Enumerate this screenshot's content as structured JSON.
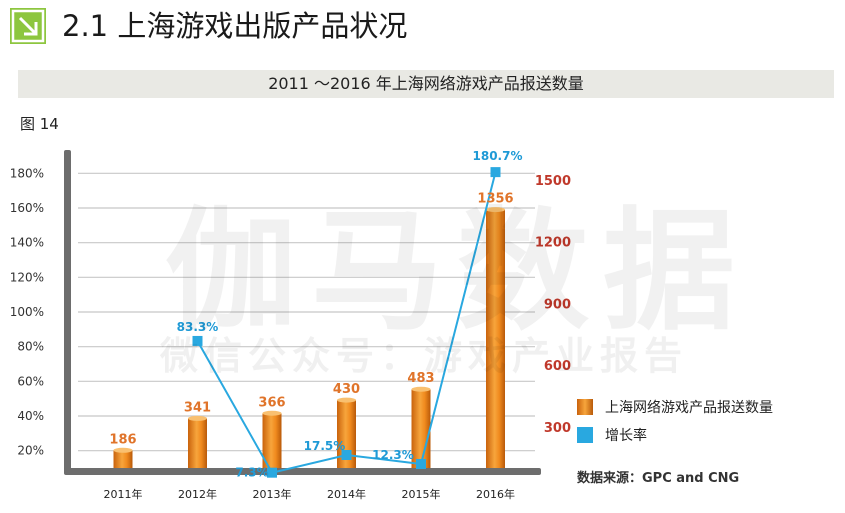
{
  "header": {
    "title": "2.1 上海游戏出版产品状况"
  },
  "banner": {
    "text": "2011 ～2016 年上海网络游戏产品报送数量"
  },
  "figure_label": "图 14",
  "watermark": {
    "main": "伽马数据",
    "sub": "微信公众号：游戏产业报告"
  },
  "legend": {
    "items": [
      {
        "label": "上海网络游戏产品报送数量",
        "color": "#f29321"
      },
      {
        "label": "增长率",
        "color": "#29a8e0"
      }
    ]
  },
  "source": "数据来源：GPC  and CNG",
  "chart_data": {
    "type": "bar",
    "categories": [
      "2011年",
      "2012年",
      "2013年",
      "2014年",
      "2015年",
      "2016年"
    ],
    "series": [
      {
        "name": "上海网络游戏产品报送数量",
        "type": "bar",
        "axis": "right",
        "values": [
          186,
          341,
          366,
          430,
          483,
          1356
        ],
        "labels": [
          "186",
          "341",
          "366",
          "430",
          "483",
          "1356"
        ],
        "color": "#f29321"
      },
      {
        "name": "增长率",
        "type": "line",
        "axis": "left",
        "values": [
          null,
          83.3,
          7.3,
          17.5,
          12.3,
          180.7
        ],
        "labels": [
          "",
          "83.3%",
          "7.3%",
          "17.5%",
          "12.3%",
          "180.7%"
        ],
        "color": "#29a8e0"
      }
    ],
    "left_axis": {
      "ticks": [
        "20%",
        "40%",
        "60%",
        "80%",
        "100%",
        "120%",
        "140%",
        "160%",
        "180%"
      ],
      "tick_values": [
        20,
        40,
        60,
        80,
        100,
        120,
        140,
        160,
        180
      ],
      "range": [
        10,
        190
      ]
    },
    "right_axis": {
      "ticks": [
        "300",
        "600",
        "900",
        "1200",
        "1500"
      ],
      "tick_values": [
        300,
        600,
        900,
        1200,
        1500
      ],
      "range": [
        100,
        1500
      ],
      "color": "#c0392b"
    },
    "grid": true
  }
}
